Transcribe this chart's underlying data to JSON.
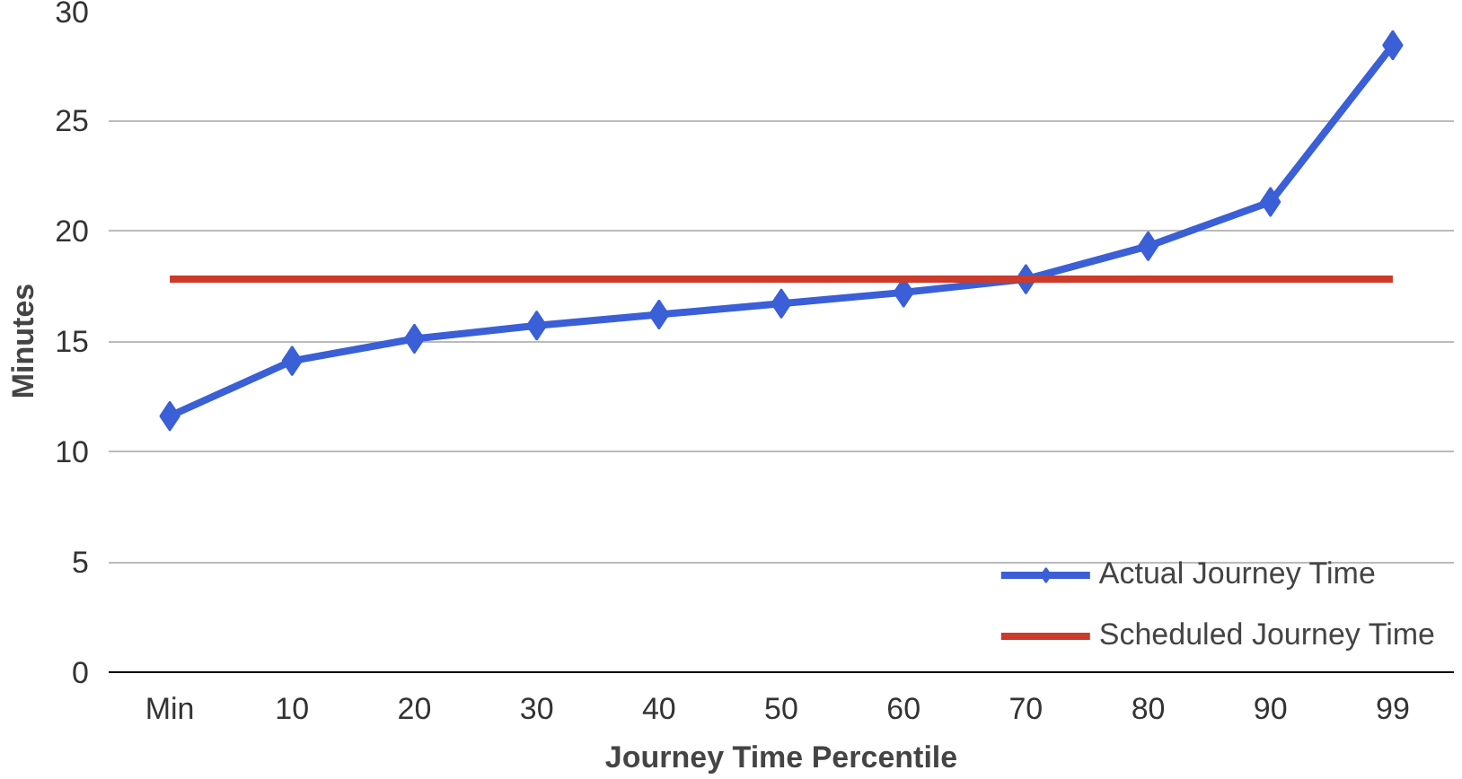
{
  "chart_data": {
    "type": "line",
    "xlabel": "Journey Time Percentile",
    "ylabel": "Minutes",
    "categories": [
      "Min",
      "10",
      "20",
      "30",
      "40",
      "50",
      "60",
      "70",
      "80",
      "90",
      "99"
    ],
    "series": [
      {
        "name": "Actual Journey Time",
        "color": "#3a5fd6",
        "marker": "diamond",
        "values": [
          11.6,
          14.1,
          15.1,
          15.7,
          16.2,
          16.7,
          17.2,
          17.8,
          19.3,
          21.3,
          28.4
        ]
      },
      {
        "name": "Scheduled Journey Time",
        "color": "#cc3a2a",
        "marker": "none",
        "values": [
          17.8,
          17.8,
          17.8,
          17.8,
          17.8,
          17.8,
          17.8,
          17.8,
          17.8,
          17.8,
          17.8
        ]
      }
    ],
    "ylim": [
      0,
      30
    ],
    "yticks": [
      0,
      5,
      10,
      15,
      20,
      25,
      30
    ],
    "grid": "y",
    "legend": "bottom right"
  }
}
